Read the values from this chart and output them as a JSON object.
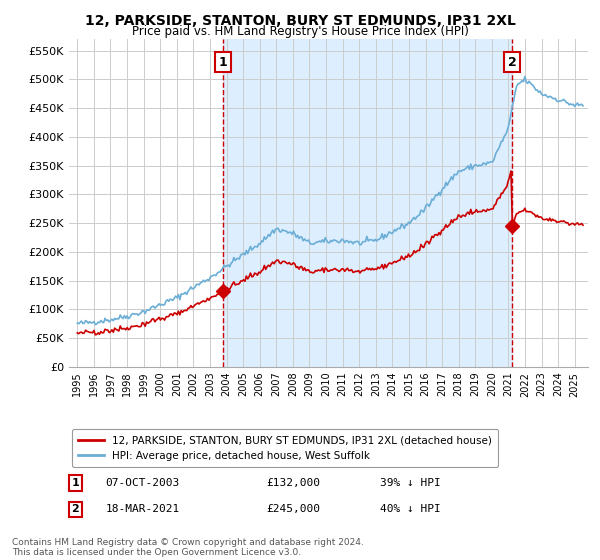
{
  "title": "12, PARKSIDE, STANTON, BURY ST EDMUNDS, IP31 2XL",
  "subtitle": "Price paid vs. HM Land Registry's House Price Index (HPI)",
  "legend_line1": "12, PARKSIDE, STANTON, BURY ST EDMUNDS, IP31 2XL (detached house)",
  "legend_line2": "HPI: Average price, detached house, West Suffolk",
  "annotation1_label": "1",
  "annotation1_date": "07-OCT-2003",
  "annotation1_price": "£132,000",
  "annotation1_pct": "39% ↓ HPI",
  "annotation2_label": "2",
  "annotation2_date": "18-MAR-2021",
  "annotation2_price": "£245,000",
  "annotation2_pct": "40% ↓ HPI",
  "footnote": "Contains HM Land Registry data © Crown copyright and database right 2024.\nThis data is licensed under the Open Government Licence v3.0.",
  "sale1_x": 2003.77,
  "sale1_y": 132000,
  "sale2_x": 2021.21,
  "sale2_y": 245000,
  "vline1_x": 2003.77,
  "vline2_x": 2021.21,
  "hpi_color": "#6baed6",
  "price_color": "#cc0000",
  "vline_color": "#cc0000",
  "fill_color": "#ddeeff",
  "background_color": "#ffffff",
  "grid_color": "#cccccc",
  "ylim": [
    0,
    570000
  ],
  "xlim_left": 1994.5,
  "xlim_right": 2025.8,
  "yticks": [
    0,
    50000,
    100000,
    150000,
    200000,
    250000,
    300000,
    350000,
    400000,
    450000,
    500000,
    550000
  ],
  "xticks": [
    1995,
    1996,
    1997,
    1998,
    1999,
    2000,
    2001,
    2002,
    2003,
    2004,
    2005,
    2006,
    2007,
    2008,
    2009,
    2010,
    2011,
    2012,
    2013,
    2014,
    2015,
    2016,
    2017,
    2018,
    2019,
    2020,
    2021,
    2022,
    2023,
    2024,
    2025
  ]
}
